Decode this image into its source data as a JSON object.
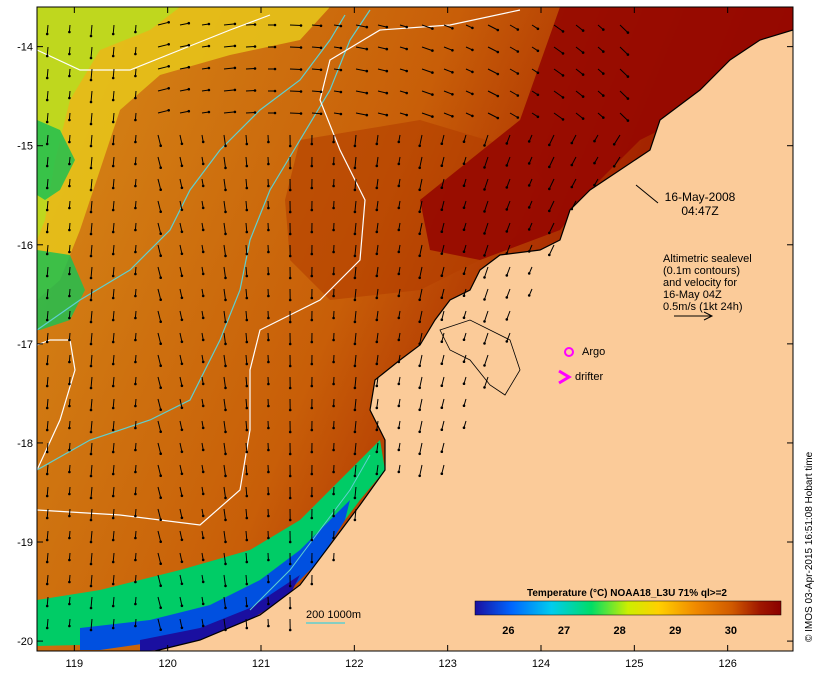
{
  "map": {
    "lon_range": [
      118.6,
      126.7
    ],
    "lat_range": [
      -20.1,
      -13.6
    ],
    "lon_ticks": [
      "119",
      "120",
      "121",
      "122",
      "123",
      "124",
      "125",
      "126"
    ],
    "lat_ticks": [
      "-14",
      "-15",
      "-16",
      "-17",
      "-18",
      "-19",
      "-20"
    ],
    "colors": {
      "land": "#fbcb99",
      "sst_ramp": [
        "#1a0fa0",
        "#0066ff",
        "#00ccee",
        "#00dd66",
        "#ccee00",
        "#ffd000",
        "#f08a00",
        "#d05a00",
        "#a01800",
        "#8a0000"
      ],
      "argo": "#ff00ff",
      "drifter": "#ff00ff",
      "isobath_200": "#5fd0d0",
      "isobath_1000": "#5fd0d0",
      "sealevel_contour": "#ffffff",
      "vector": "#000000"
    }
  },
  "annotations": {
    "date_line1": "16-May-2008",
    "date_line2": "04:47Z",
    "alt_line1": "Altimetric sealevel",
    "alt_line2": "(0.1m contours)",
    "alt_line3": "and velocity for",
    "alt_line4": "16-May 04Z",
    "alt_line5": "0.5m/s (1kt 24h)",
    "argo_label": "Argo",
    "drifter_label": "drifter",
    "isobath_label": "200  1000m"
  },
  "colorbar": {
    "title": "Temperature (°C) NOAA18_L3U 71% ql>=2",
    "range": [
      25.4,
      30.9
    ],
    "ticks": [
      "26",
      "27",
      "28",
      "29",
      "30"
    ]
  },
  "credit": "© IMOS 03-Apr-2015 16:51:08 Hobart time"
}
